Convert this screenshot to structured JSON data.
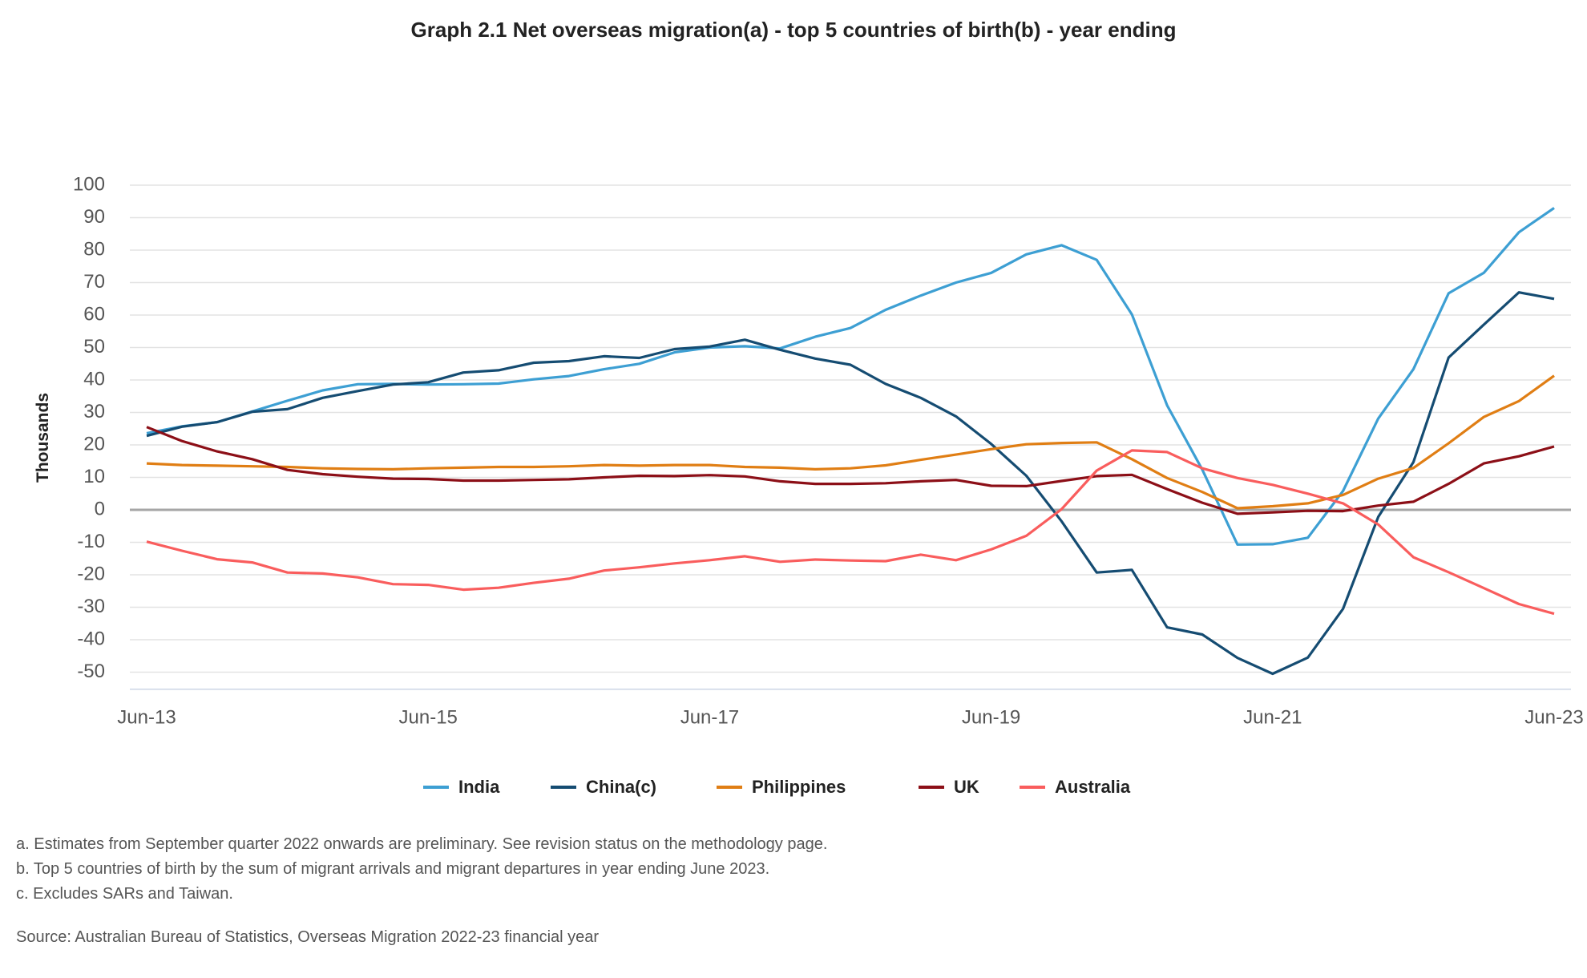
{
  "title": "Graph 2.1 Net overseas migration(a) - top 5 countries of birth(b) - year ending",
  "notes": [
    "a. Estimates from September quarter 2022 onwards are preliminary. See revision status on the methodology page.",
    "b. Top 5 countries of birth by the sum of migrant arrivals and migrant departures in year ending June 2023.",
    "c. Excludes SARs and Taiwan."
  ],
  "source": "Source: Australian Bureau of Statistics, Overseas Migration 2022-23 financial year",
  "chart_data": {
    "type": "line",
    "title": "Graph 2.1 Net overseas migration(a) - top 5 countries of birth(b) - year ending",
    "xlabel": "",
    "ylabel": "Thousands",
    "ylim": [
      -55,
      100
    ],
    "yticks": [
      100,
      90,
      80,
      70,
      60,
      50,
      40,
      30,
      20,
      10,
      0,
      -10,
      -20,
      -30,
      -40,
      -50
    ],
    "grid": true,
    "legend_position": "bottom",
    "x": [
      "Jun-13",
      "Sep-13",
      "Dec-13",
      "Mar-14",
      "Jun-14",
      "Sep-14",
      "Dec-14",
      "Mar-15",
      "Jun-15",
      "Sep-15",
      "Dec-15",
      "Mar-16",
      "Jun-16",
      "Sep-16",
      "Dec-16",
      "Mar-17",
      "Jun-17",
      "Sep-17",
      "Dec-17",
      "Mar-18",
      "Jun-18",
      "Sep-18",
      "Dec-18",
      "Mar-19",
      "Jun-19",
      "Sep-19",
      "Dec-19",
      "Mar-20",
      "Jun-20",
      "Sep-20",
      "Dec-20",
      "Mar-21",
      "Jun-21",
      "Sep-21",
      "Dec-21",
      "Mar-22",
      "Jun-22",
      "Sep-22",
      "Dec-22",
      "Mar-23",
      "Jun-23"
    ],
    "xtick_labels": [
      {
        "index": 0,
        "label": "Jun-13"
      },
      {
        "index": 8,
        "label": "Jun-15"
      },
      {
        "index": 16,
        "label": "Jun-17"
      },
      {
        "index": 24,
        "label": "Jun-19"
      },
      {
        "index": 32,
        "label": "Jun-21"
      },
      {
        "index": 40,
        "label": "Jun-23"
      }
    ],
    "series": [
      {
        "name": "India",
        "color": "#3d9fd3",
        "values": [
          23.6,
          25.7,
          27.0,
          30.3,
          33.6,
          36.8,
          38.7,
          38.8,
          38.6,
          38.7,
          38.9,
          40.2,
          41.2,
          43.3,
          45.0,
          48.5,
          50.0,
          50.4,
          49.7,
          53.3,
          56.0,
          61.6,
          66.0,
          70.0,
          73.0,
          78.7,
          81.5,
          77.0,
          60.2,
          32.2,
          12.4,
          -10.7,
          -10.6,
          -8.6,
          5.8,
          28.1,
          43.3,
          66.7,
          73.0,
          85.5,
          93.0
        ]
      },
      {
        "name": "China(c)",
        "color": "#154c72",
        "values": [
          22.8,
          25.6,
          27.0,
          30.2,
          31.0,
          34.5,
          36.6,
          38.6,
          39.3,
          42.3,
          43.0,
          45.3,
          45.8,
          47.3,
          46.8,
          49.5,
          50.3,
          52.4,
          49.3,
          46.6,
          44.7,
          38.8,
          34.5,
          28.8,
          20.3,
          10.5,
          -3.5,
          -19.3,
          -18.5,
          -36.2,
          -38.4,
          -45.6,
          -50.5,
          -45.5,
          -30.5,
          -2.2,
          14.7,
          46.9,
          57.0,
          67.0,
          65.0
        ]
      },
      {
        "name": "Philippines",
        "color": "#e07e14",
        "values": [
          14.3,
          13.8,
          13.6,
          13.4,
          13.2,
          12.8,
          12.6,
          12.5,
          12.8,
          13.0,
          13.2,
          13.2,
          13.4,
          13.8,
          13.6,
          13.8,
          13.8,
          13.2,
          13.0,
          12.5,
          12.8,
          13.7,
          15.4,
          17.0,
          18.7,
          20.2,
          20.6,
          20.8,
          15.6,
          9.8,
          5.5,
          0.5,
          1.1,
          2.0,
          4.6,
          9.6,
          12.9,
          20.5,
          28.6,
          33.5,
          41.3
        ]
      },
      {
        "name": "UK",
        "color": "#8c0f17",
        "values": [
          25.5,
          21.2,
          18.0,
          15.6,
          12.3,
          11.0,
          10.2,
          9.6,
          9.5,
          9.0,
          9.0,
          9.2,
          9.4,
          10.0,
          10.5,
          10.4,
          10.7,
          10.3,
          8.8,
          8.0,
          8.0,
          8.2,
          8.8,
          9.2,
          7.4,
          7.3,
          8.9,
          10.4,
          10.8,
          6.4,
          2.2,
          -1.2,
          -0.8,
          -0.3,
          -0.4,
          1.3,
          2.5,
          8.0,
          14.3,
          16.5,
          19.5
        ]
      },
      {
        "name": "Australia",
        "color": "#f95d5d",
        "values": [
          -9.8,
          -12.6,
          -15.2,
          -16.2,
          -19.3,
          -19.6,
          -20.8,
          -22.9,
          -23.1,
          -24.6,
          -24.0,
          -22.5,
          -21.2,
          -18.7,
          -17.7,
          -16.5,
          -15.5,
          -14.3,
          -16.0,
          -15.3,
          -15.6,
          -15.8,
          -13.8,
          -15.5,
          -12.2,
          -8.0,
          0.2,
          12.1,
          18.3,
          17.8,
          12.8,
          9.8,
          7.7,
          5.0,
          2.0,
          -4.5,
          -14.6,
          -19.2,
          -24.1,
          -29.0,
          -32.0
        ]
      }
    ],
    "colors": {
      "gridline": "#e3e3e3",
      "zero_line": "#a6a6a6",
      "x_axis_line": "#ccd6e6"
    }
  }
}
